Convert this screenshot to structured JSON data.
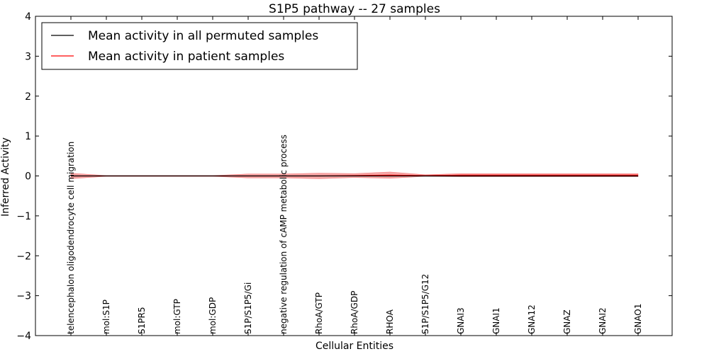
{
  "chart_data": {
    "type": "line",
    "title": "S1P5 pathway -- 27 samples",
    "xlabel": "Cellular Entities",
    "ylabel": "Inferred Activity",
    "ylim": [
      -4,
      4
    ],
    "yticks": [
      "4",
      "3",
      "2",
      "1",
      "0",
      "−1",
      "−2",
      "−3",
      "−4"
    ],
    "ytick_values": [
      4,
      3,
      2,
      1,
      0,
      -1,
      -2,
      -3,
      -4
    ],
    "grid": false,
    "legend_position": "top-left",
    "categories": [
      "telencephalon oligodendrocyte cell migration",
      "mol:S1P",
      "S1PR5",
      "mol:GTP",
      "mol:GDP",
      "S1P/S1P5/Gi",
      "negative regulation of cAMP metabolic process",
      "RhoA/GTP",
      "RhoA/GDP",
      "RHOA",
      "S1P/S1P5/G12",
      "GNAI3",
      "GNAI1",
      "GNA12",
      "GNAZ",
      "GNAI2",
      "GNAO1"
    ],
    "series": [
      {
        "name": "Mean activity in all permuted samples",
        "color": "#000000",
        "values": [
          0,
          0,
          0,
          0,
          0,
          0,
          0,
          0,
          0,
          0,
          0,
          0,
          0,
          0,
          0,
          0,
          0
        ],
        "band": [
          0.005,
          0.005,
          0.005,
          0.005,
          0.005,
          0.005,
          0.005,
          0.005,
          0.005,
          0.005,
          0.01,
          0.02,
          0.02,
          0.02,
          0.02,
          0.02,
          0.02
        ]
      },
      {
        "name": "Mean activity in patient samples",
        "color": "#ff0000",
        "values": [
          0.0,
          0.0,
          0.0,
          0.0,
          0.0,
          0.0,
          0.0,
          0.0,
          0.01,
          0.02,
          0.01,
          0.02,
          0.02,
          0.02,
          0.02,
          0.02,
          0.02
        ],
        "band": [
          0.07,
          0.01,
          0.01,
          0.01,
          0.01,
          0.05,
          0.05,
          0.07,
          0.05,
          0.08,
          0.02,
          0.04,
          0.04,
          0.04,
          0.04,
          0.04,
          0.04
        ],
        "band_color": "#f08080"
      }
    ]
  }
}
